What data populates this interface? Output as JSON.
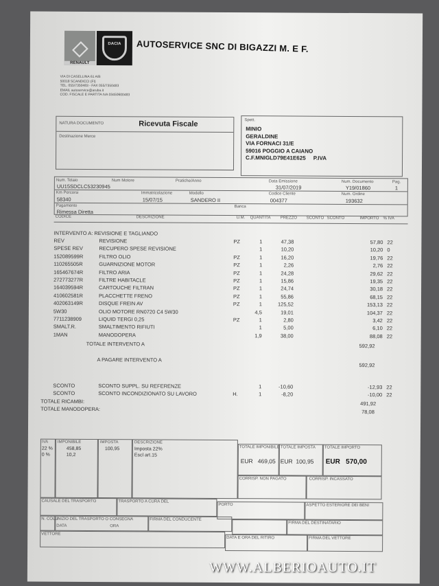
{
  "header": {
    "brand_left": "RENAULT",
    "brand_right": "DACIA",
    "company": "AUTOSERVICE SNC DI BIGAZZI M. E F.",
    "address": [
      "VIA DI CASELLINA 61 A/B",
      "50018 SCANDICCI (FI)",
      "TEL. 055/7350483 - FAX 055/7350483",
      "EMAIL autoservice@aruba.it",
      "COD. FISCALE E PARTITA IVA 03450600483"
    ]
  },
  "doc": {
    "natura_label": "NATURA DOCUMENTO",
    "natura": "Ricevuta Fiscale",
    "destinazione_label": "Destinazione Merce",
    "spett_label": "Spett.",
    "customer": [
      "MINIO",
      "GERALDINE",
      "VIA FORNACI 31/E",
      "59016  POGGIO A CAIANO",
      "C.F.MNIGLD79E41E625     P.IVA"
    ]
  },
  "fields": {
    "telaio_l": "Num. Telaio",
    "telaio": "UU15SDCLC53230945",
    "motore_l": "Num Motore",
    "targa_l": "Pratiche/Anno",
    "data_l": "Data Emissione",
    "data": "31/07/2019",
    "numdoc_l": "Num. Documento",
    "numdoc": "Y19/01860",
    "pag_l": "Pag.",
    "pag": "1",
    "km_l": "Km Percorsi",
    "km": "58340",
    "immat_l": "Immatricolazione",
    "immat": "15/07/15",
    "modello_l": "Modello",
    "modello": "SANDERO II",
    "cliente_l": "Codice Cliente",
    "cliente": "004377",
    "ordine_l": "Num. Ordine",
    "ordine": "193632",
    "pagamento_l": "Pagamento",
    "pagamento": "Rimessa Diretta",
    "banca_l": "Banca"
  },
  "columns": [
    "CODICE",
    "DESCRIZIONE",
    "U.M.",
    "QUANTITA",
    "PREZZO",
    "SCONTO",
    "SCONTO",
    "IMPORTO",
    "% IVA"
  ],
  "intervento_title": "INTERVENTO A: REVISIONE E TAGLIANDO",
  "items": [
    {
      "code": "REV",
      "desc": "REVISIONE",
      "um": "PZ",
      "qty": "1",
      "price": "47,38",
      "amount": "57,80",
      "iva": "22"
    },
    {
      "code": "SPESE REV",
      "desc": "RECUPERO SPESE REVISIONE",
      "um": "",
      "qty": "1",
      "price": "10,20",
      "amount": "10,20",
      "iva": "0"
    },
    {
      "code": "152089599R",
      "desc": "FILTRO OLIO",
      "um": "PZ",
      "qty": "1",
      "price": "16,20",
      "amount": "19,76",
      "iva": "22"
    },
    {
      "code": "110265505R",
      "desc": "GUARNIZIONE MOTOR",
      "um": "PZ",
      "qty": "1",
      "price": "2,26",
      "amount": "2,76",
      "iva": "22"
    },
    {
      "code": "165467674R",
      "desc": "FILTRO ARIA",
      "um": "PZ",
      "qty": "1",
      "price": "24,28",
      "amount": "29,62",
      "iva": "22"
    },
    {
      "code": "272773277R",
      "desc": "FILTRE HABITACLE",
      "um": "PZ",
      "qty": "1",
      "price": "15,86",
      "amount": "19,35",
      "iva": "22"
    },
    {
      "code": "164039594R",
      "desc": "CARTOUCHE FILTRAN",
      "um": "PZ",
      "qty": "1",
      "price": "24,74",
      "amount": "30,18",
      "iva": "22"
    },
    {
      "code": "410602581R",
      "desc": "PLACCHETTE FRENO",
      "um": "PZ",
      "qty": "1",
      "price": "55,86",
      "amount": "68,15",
      "iva": "22"
    },
    {
      "code": "402063149R",
      "desc": "DISQUE FREIN AV",
      "um": "PZ",
      "qty": "1",
      "price": "125,52",
      "amount": "153,13",
      "iva": "22"
    },
    {
      "code": "5W30",
      "desc": "OLIO MOTORE RN0720 C4 5W30",
      "um": "",
      "qty": "4,5",
      "price": "19,01",
      "amount": "104,37",
      "iva": "22"
    },
    {
      "code": "7711238909",
      "desc": "LIQUID TERGI 0,25",
      "um": "PZ",
      "qty": "1",
      "price": "2,80",
      "amount": "3,42",
      "iva": "22"
    },
    {
      "code": "SMALT.R.",
      "desc": "SMALTIMENTO RIFIUTI",
      "um": "",
      "qty": "1",
      "price": "5,00",
      "amount": "6,10",
      "iva": "22"
    },
    {
      "code": "1MAN",
      "desc": "MANODOPERA",
      "um": "",
      "qty": "1,9",
      "price": "38,00",
      "amount": "88,08",
      "iva": "22"
    }
  ],
  "totale_intervento_l": "TOTALE INTERVENTO A",
  "totale_intervento": "592,92",
  "a_pagare_l": "A PAGARE INTERVENTO A",
  "a_pagare": "592,92",
  "discounts": [
    {
      "code": "SCONTO",
      "desc": "SCONTO SUPPL. SU REFERENZE",
      "um": "",
      "qty": "1",
      "price": "-10,60",
      "amount": "-12,93",
      "iva": "22"
    },
    {
      "code": "SCONTO",
      "desc": "SCONTO INCONDIZIONATO SU LAVORO",
      "um": "H.",
      "qty": "1",
      "price": "-8,20",
      "amount": "-10,00",
      "iva": "22"
    }
  ],
  "tot_ricambi_l": "TOTALE RICAMBI:",
  "tot_ricambi": "491,92",
  "tot_mano_l": "TOTALE MANODOPERA:",
  "tot_mano": "78,08",
  "vat": {
    "iva_l": "IVA",
    "imponibile_l": "IMPONIBILE",
    "imposta_l": "IMPOSTA",
    "descrizione_l": "DESCRIZIONE",
    "rows": [
      {
        "iva": "22 %",
        "imponibile": "458,85",
        "imposta": "100,95",
        "desc": "Imposta 22%"
      },
      {
        "iva": "0 %",
        "imponibile": "10,2",
        "imposta": "",
        "desc": "Escl art.15"
      }
    ]
  },
  "totals": {
    "imponibile_l": "TOTALE IMPONIBILE",
    "imponibile": "EUR   469,05",
    "imposta_l": "TOTALE IMPOSTA",
    "imposta": "EUR  100,95",
    "importo_l": "TOTALE IMPORTO",
    "importo": "EUR   570,00",
    "non_pagato_l": "CORRISP. NON PAGATO",
    "incassato_l": "CORRISP. INCASSATO"
  },
  "transport": {
    "causale": "CAUSALE DEL TRASPORTO",
    "cura": "TRASPORTO A CURA DEL",
    "porto": "PORTO",
    "aspetto": "ASPETTO ESTERIORE DEI BENI",
    "colli": "N. COLLI",
    "inizio": "INIZIO DEL TRASPORTO O CONSEGNA",
    "data": "DATA",
    "ora": "ORA",
    "firma_cond": "FIRMA DEL CONDUCENTE",
    "firma_dest": "FIRMA DEL DESTINATARIO",
    "vettore": "VETTORE",
    "ritiro": "DATA E ORA DEL RITIRO",
    "firma_vett": "FIRMA DEL VETTORE"
  },
  "watermark": "WWW.ALBERIOAUTO.IT"
}
